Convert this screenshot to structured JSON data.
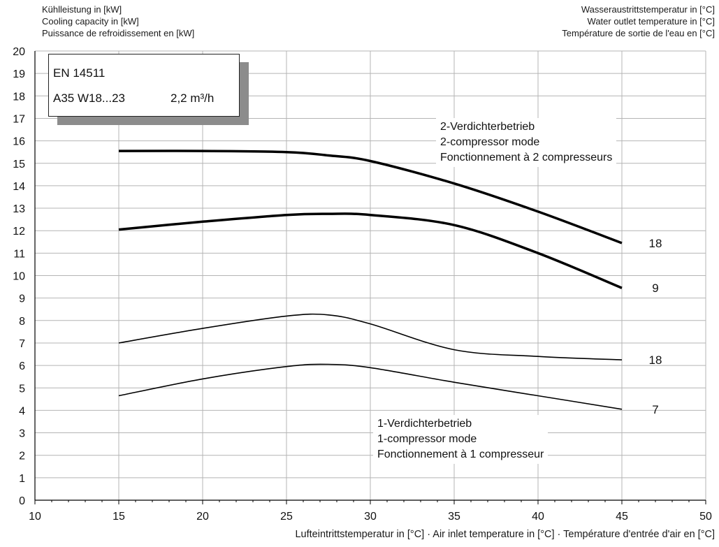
{
  "header": {
    "left_lines": [
      "Kühlleistung in [kW]",
      "Cooling capacity in [kW]",
      "Puissance de refroidissement en [kW]"
    ],
    "right_lines": [
      "Wasseraustrittstemperatur in [°C]",
      "Water outlet temperature in [°C]",
      "Température de sortie de l'eau en [°C]"
    ]
  },
  "info_box": {
    "standard": "EN 14511",
    "condition": "A35 W18...23",
    "flow": "2,2 m³/h"
  },
  "annotations": {
    "mode_2": [
      "2-Verdichterbetrieb",
      "2-compressor mode",
      "Fonctionnement à 2 compresseurs"
    ],
    "mode_1": [
      "1-Verdichterbetrieb",
      "1-compressor mode",
      "Fonctionnement à 1 compresseur"
    ]
  },
  "colors": {
    "line": "#000000",
    "grid": "#b4b4b4",
    "shadow": "#8c8c8c"
  },
  "chart_data": {
    "type": "line",
    "xlabel": "Lufteintrittstemperatur in [°C] · Air inlet temperature in [°C] · Température d'entrée d'air en [°C]",
    "ylabel": "Kühlleistung in [kW] / Cooling capacity in [kW] / Puissance de refroidissement en [kW]",
    "xlim": [
      10,
      50
    ],
    "ylim": [
      0,
      20
    ],
    "x_ticks": [
      10,
      15,
      20,
      25,
      30,
      35,
      40,
      45,
      50
    ],
    "y_ticks": [
      0,
      1,
      2,
      3,
      4,
      5,
      6,
      7,
      8,
      9,
      10,
      11,
      12,
      13,
      14,
      15,
      16,
      17,
      18,
      19,
      20
    ],
    "grid": true,
    "series": [
      {
        "name": "18",
        "mode": "2-compressor",
        "style": "thick",
        "x": [
          15,
          20,
          25,
          27.5,
          30,
          35,
          40,
          45
        ],
        "y": [
          15.55,
          15.55,
          15.5,
          15.35,
          15.1,
          14.1,
          12.85,
          11.45
        ]
      },
      {
        "name": "9",
        "mode": "2-compressor",
        "style": "thick",
        "x": [
          15,
          20,
          25,
          27.5,
          30,
          35,
          40,
          45
        ],
        "y": [
          12.05,
          12.4,
          12.7,
          12.75,
          12.7,
          12.25,
          11.0,
          9.45
        ]
      },
      {
        "name": "18",
        "mode": "1-compressor",
        "style": "thin",
        "x": [
          15,
          20,
          25,
          27.5,
          30,
          35,
          40,
          45
        ],
        "y": [
          7.0,
          7.65,
          8.2,
          8.25,
          7.85,
          6.7,
          6.4,
          6.25
        ]
      },
      {
        "name": "7",
        "mode": "1-compressor",
        "style": "thin",
        "x": [
          15,
          20,
          25,
          27.5,
          30,
          35,
          40,
          45
        ],
        "y": [
          4.65,
          5.4,
          5.95,
          6.05,
          5.9,
          5.25,
          4.65,
          4.05
        ]
      }
    ]
  }
}
